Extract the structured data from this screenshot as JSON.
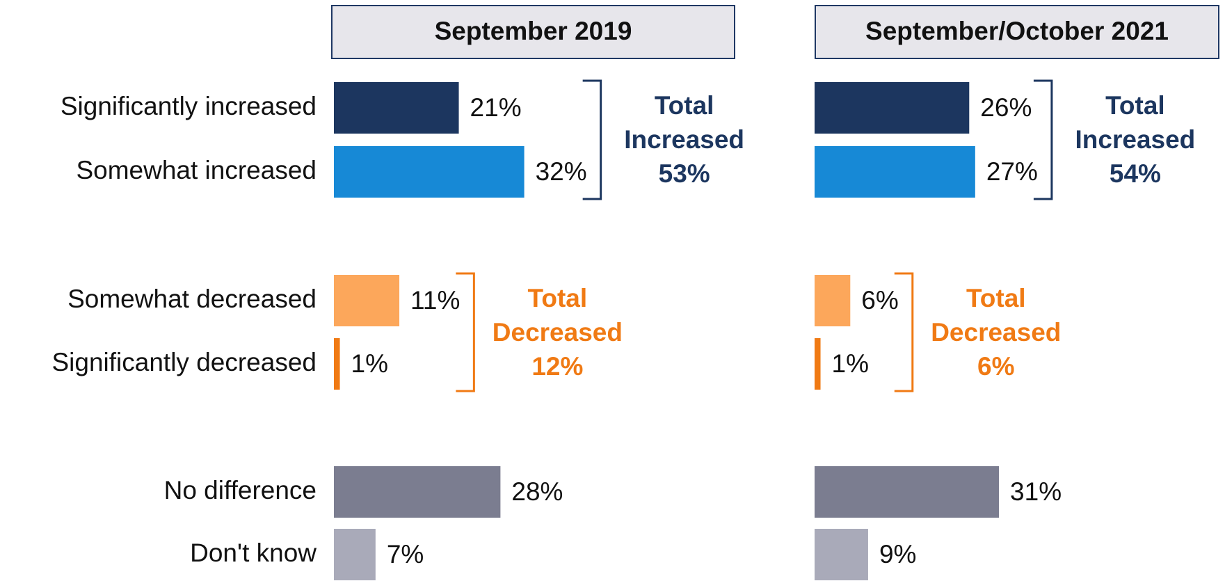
{
  "chart_data": {
    "type": "bar",
    "categories": [
      "Significantly increased",
      "Somewhat increased",
      "Somewhat decreased",
      "Significantly decreased",
      "No difference",
      "Don't know"
    ],
    "colors": [
      "#1c365f",
      "#1789d6",
      "#fca75b",
      "#f07a14",
      "#7b7d90",
      "#a9aab9"
    ],
    "series": [
      {
        "name": "September 2019",
        "values": [
          21,
          32,
          11,
          1,
          28,
          7
        ],
        "value_labels": [
          "21%",
          "32%",
          "11%",
          "1%",
          "28%",
          "7%"
        ],
        "groups": [
          {
            "label": "Total Increased",
            "value": 53,
            "value_label": "53%",
            "color": "#1c365f"
          },
          {
            "label": "Total Decreased",
            "value": 12,
            "value_label": "12%",
            "color": "#f07a14"
          }
        ]
      },
      {
        "name": "September/October 2021",
        "values": [
          26,
          27,
          6,
          1,
          31,
          9
        ],
        "value_labels": [
          "26%",
          "27%",
          "6%",
          "1%",
          "31%",
          "9%"
        ],
        "groups": [
          {
            "label": "Total Increased",
            "value": 54,
            "value_label": "54%",
            "color": "#1c365f"
          },
          {
            "label": "Total Decreased",
            "value": 6,
            "value_label": "6%",
            "color": "#f07a14"
          }
        ]
      }
    ]
  }
}
